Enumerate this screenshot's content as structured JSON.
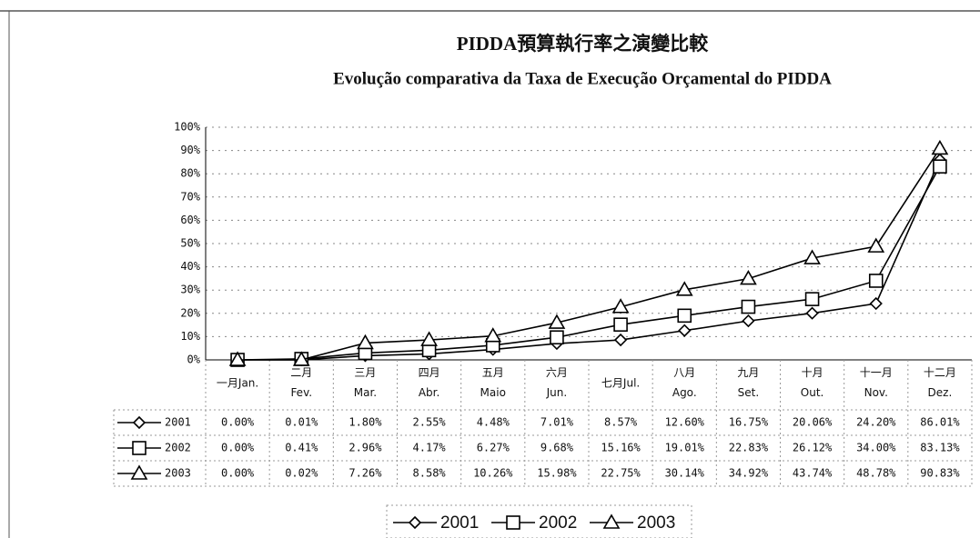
{
  "chart_data": {
    "type": "line",
    "title": "PIDDA預算執行率之演變比較",
    "subtitle": "Evolução comparativa da Taxa de Execução Orçamental do PIDDA",
    "categories": [
      "一月Jan.",
      "二月 Fev.",
      "三月 Mar.",
      "四月 Abr.",
      "五月 Maio",
      "六月 Jun.",
      "七月Jul.",
      "八月 Ago.",
      "九月 Set.",
      "十月 Out.",
      "十一月 Nov.",
      "十二月 Dez."
    ],
    "series": [
      {
        "name": "2001",
        "color": "#000000",
        "marker": "diamond",
        "values": [
          0,
          0.01,
          1.8,
          2.55,
          4.48,
          7.01,
          8.57,
          12.6,
          16.75,
          20.06,
          24.2,
          86.01
        ],
        "value_labels": [
          "0.00%",
          "0.01%",
          "1.80%",
          "2.55%",
          "4.48%",
          "7.01%",
          "8.57%",
          "12.60%",
          "16.75%",
          "20.06%",
          "24.20%",
          "86.01%"
        ]
      },
      {
        "name": "2002",
        "color": "#000000",
        "marker": "square",
        "values": [
          0,
          0.41,
          2.96,
          4.17,
          6.27,
          9.68,
          15.16,
          19.01,
          22.83,
          26.12,
          34.0,
          83.13
        ],
        "value_labels": [
          "0.00%",
          "0.41%",
          "2.96%",
          "4.17%",
          "6.27%",
          "9.68%",
          "15.16%",
          "19.01%",
          "22.83%",
          "26.12%",
          "34.00%",
          "83.13%"
        ]
      },
      {
        "name": "2003",
        "color": "#000000",
        "marker": "triangle",
        "values": [
          0,
          0.02,
          7.26,
          8.58,
          10.26,
          15.98,
          22.75,
          30.14,
          34.92,
          43.74,
          48.78,
          90.83
        ],
        "value_labels": [
          "0.00%",
          "0.02%",
          "7.26%",
          "8.58%",
          "10.26%",
          "15.98%",
          "22.75%",
          "30.14%",
          "34.92%",
          "43.74%",
          "48.78%",
          "90.83%"
        ]
      }
    ],
    "ylim": [
      0,
      100
    ],
    "yticks": [
      {
        "value": 0,
        "label": "0%"
      },
      {
        "value": 10,
        "label": "10%"
      },
      {
        "value": 20,
        "label": "20%"
      },
      {
        "value": 30,
        "label": "30%"
      },
      {
        "value": 40,
        "label": "40%"
      },
      {
        "value": 50,
        "label": "50%"
      },
      {
        "value": 60,
        "label": "60%"
      },
      {
        "value": 70,
        "label": "70%"
      },
      {
        "value": 80,
        "label": "80%"
      },
      {
        "value": 90,
        "label": "90%"
      },
      {
        "value": 100,
        "label": "100%"
      }
    ],
    "grid": true
  }
}
